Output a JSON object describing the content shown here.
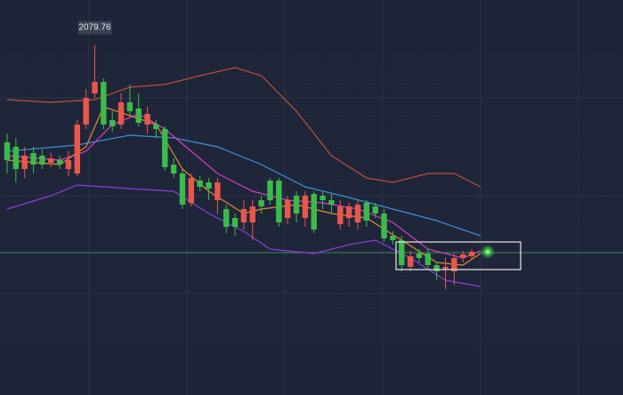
{
  "chart_data": {
    "type": "candlestick",
    "annotation": "2079.76",
    "up_color": "#e8574c",
    "down_color": "#3dbb4a",
    "ylim": [
      1922.4,
      2100
    ],
    "open": [
      2036,
      2034,
      2024,
      2031.2,
      2030,
      2026.8,
      2028,
      2024,
      2022,
      2044,
      2058,
      2063.2,
      2046,
      2044,
      2054,
      2051.2,
      2044,
      2044,
      2042,
      2026,
      2022,
      2008.8,
      2018.8,
      2018,
      2010,
      2006,
      2002,
      2000,
      2000,
      2010,
      2018.8,
      2018.8,
      2002,
      2012,
      2002,
      2012.8,
      2012,
      2010,
      1999.2,
      2002,
      2000,
      2008.8,
      2007.2,
      2004,
      1994,
      1992,
      1980,
      1986,
      1986,
      1980.8,
      1979.2,
      1978,
      1984,
      1984.8
    ],
    "high": [
      2040,
      2038,
      2034,
      2034,
      2032.8,
      2031.2,
      2030,
      2032,
      2046,
      2060,
      2079.76,
      2064.8,
      2050,
      2058,
      2062,
      2058,
      2052,
      2046,
      2043.2,
      2028.8,
      2024,
      2022,
      2020.8,
      2020,
      2020,
      2008,
      2004,
      2010,
      2010,
      2012,
      2020,
      2020,
      2012,
      2014,
      2014,
      2014,
      2014,
      2012.8,
      2010,
      2008.8,
      2010,
      2010,
      2008.8,
      2006,
      1996,
      1994,
      1987.2,
      1988,
      1988,
      1982,
      1984,
      1986,
      1987.2,
      1988
    ],
    "low": [
      2022,
      2018,
      2020,
      2022,
      2024,
      2024.8,
      2024,
      2020.8,
      2020.8,
      2042,
      2056,
      2042,
      2040.8,
      2042,
      2048,
      2043.2,
      2040,
      2038,
      2023.2,
      2020,
      2006,
      2007.2,
      2014,
      2010,
      2004,
      1995.2,
      1994,
      1996.8,
      1992,
      2004,
      2008,
      1998,
      1999.2,
      2000,
      1998,
      1995.2,
      2006,
      2004,
      1996.8,
      1998,
      1996.8,
      1998,
      2002,
      1991.2,
      1990,
      1978,
      1978,
      1982,
      1979.2,
      1974,
      1970,
      1972,
      1982,
      1983.2
    ],
    "close": [
      2028,
      2024,
      2030,
      2026,
      2026,
      2028.8,
      2026,
      2028,
      2044,
      2056,
      2063.2,
      2044,
      2043.2,
      2054,
      2050,
      2044.8,
      2048.8,
      2042,
      2024.8,
      2022,
      2008,
      2020,
      2016,
      2015.2,
      2018,
      1998,
      1998,
      2006,
      2007.2,
      2007.2,
      2010,
      2000,
      2010,
      2004,
      2012,
      1996.8,
      2010,
      2008,
      2007.2,
      2007.2,
      2008,
      2000.8,
      2004,
      1992.8,
      1992,
      1980.8,
      1984.8,
      1984,
      1980.8,
      1978,
      1980,
      1984,
      1985.6,
      1986.8
    ],
    "lines": [
      {
        "color": "#b9513a",
        "x": [
          0,
          5,
          10,
          14,
          18,
          22,
          26,
          29,
          33,
          37,
          41,
          44,
          48,
          51,
          54
        ],
        "values": [
          2055.2,
          2054,
          2055.2,
          2060.8,
          2062,
          2066,
          2069.6,
          2066,
          2050,
          2030,
          2020,
          2018,
          2022,
          2022,
          2016
        ]
      },
      {
        "color": "#8a3fd6",
        "x": [
          0,
          5,
          8,
          14,
          19,
          23,
          27,
          30,
          35,
          39,
          42,
          46,
          50,
          54
        ],
        "values": [
          2006,
          2012,
          2016.8,
          2015.2,
          2014,
          2004,
          1996,
          1988,
          1986,
          1990,
          1992,
          1984,
          1974,
          1971.2
        ]
      },
      {
        "color": "#3a8fd6",
        "x": [
          0,
          8,
          14,
          19,
          24,
          29,
          34,
          39,
          44,
          49,
          54
        ],
        "values": [
          2032,
          2034.8,
          2039.2,
          2038,
          2034,
          2026,
          2016,
          2011.2,
          2006,
          2000.8,
          1994
        ]
      },
      {
        "color": "#d040c8",
        "x": [
          0,
          6,
          9,
          12,
          15,
          18,
          21,
          24,
          28,
          32,
          36,
          40,
          44,
          48,
          52,
          54
        ],
        "values": [
          2030,
          2028,
          2032,
          2044,
          2048.8,
          2042,
          2032,
          2022,
          2014,
          2010,
          2008.8,
          2006,
          2000,
          1988,
          1984,
          1987.2
        ]
      },
      {
        "color": "#e08a30",
        "x": [
          0,
          6,
          9,
          11,
          14,
          17,
          20,
          23,
          27,
          29,
          33,
          37,
          41,
          45,
          49,
          52,
          54
        ],
        "values": [
          2028,
          2026,
          2034,
          2052,
          2048,
          2044,
          2024,
          2014,
          2004,
          2006,
          2008,
          2004,
          2002,
          1992,
          1982,
          1980.8,
          1986
        ]
      }
    ],
    "price_line": 1986.4,
    "price_line_color": "#3c8c5a"
  }
}
